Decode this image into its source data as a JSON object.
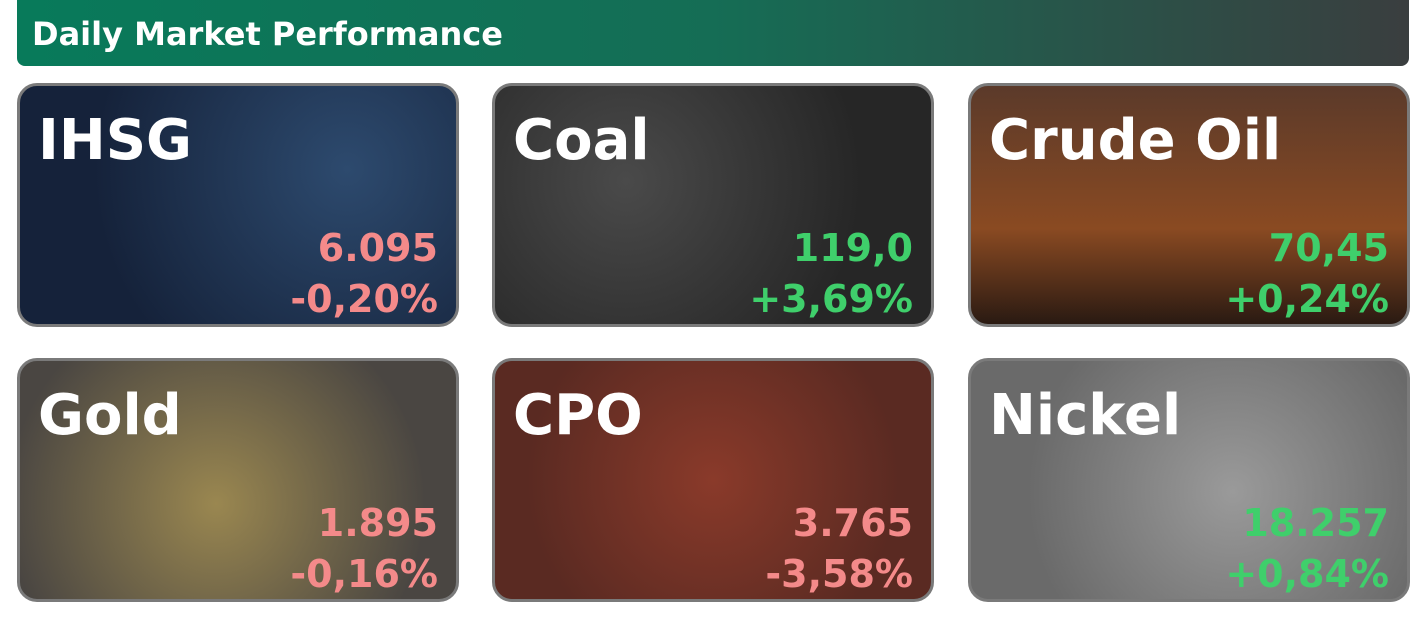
{
  "header": {
    "title": "Daily Market Performance"
  },
  "cards": [
    {
      "name": "IHSG",
      "value": "6.095",
      "change": "-0,20%",
      "color": "#f48a8a"
    },
    {
      "name": "Coal",
      "value": "119,0",
      "change": "+3,69%",
      "color": "#3fcf6b"
    },
    {
      "name": "Crude Oil",
      "value": "70,45",
      "change": "+0,24%",
      "color": "#3fcf6b"
    },
    {
      "name": "Gold",
      "value": "1.895",
      "change": "-0,16%",
      "color": "#f48a8a"
    },
    {
      "name": "CPO",
      "value": "3.765",
      "change": "-3,58%",
      "color": "#f48a8a"
    },
    {
      "name": "Nickel",
      "value": "18.257",
      "change": "+0,84%",
      "color": "#3fcf6b"
    }
  ]
}
